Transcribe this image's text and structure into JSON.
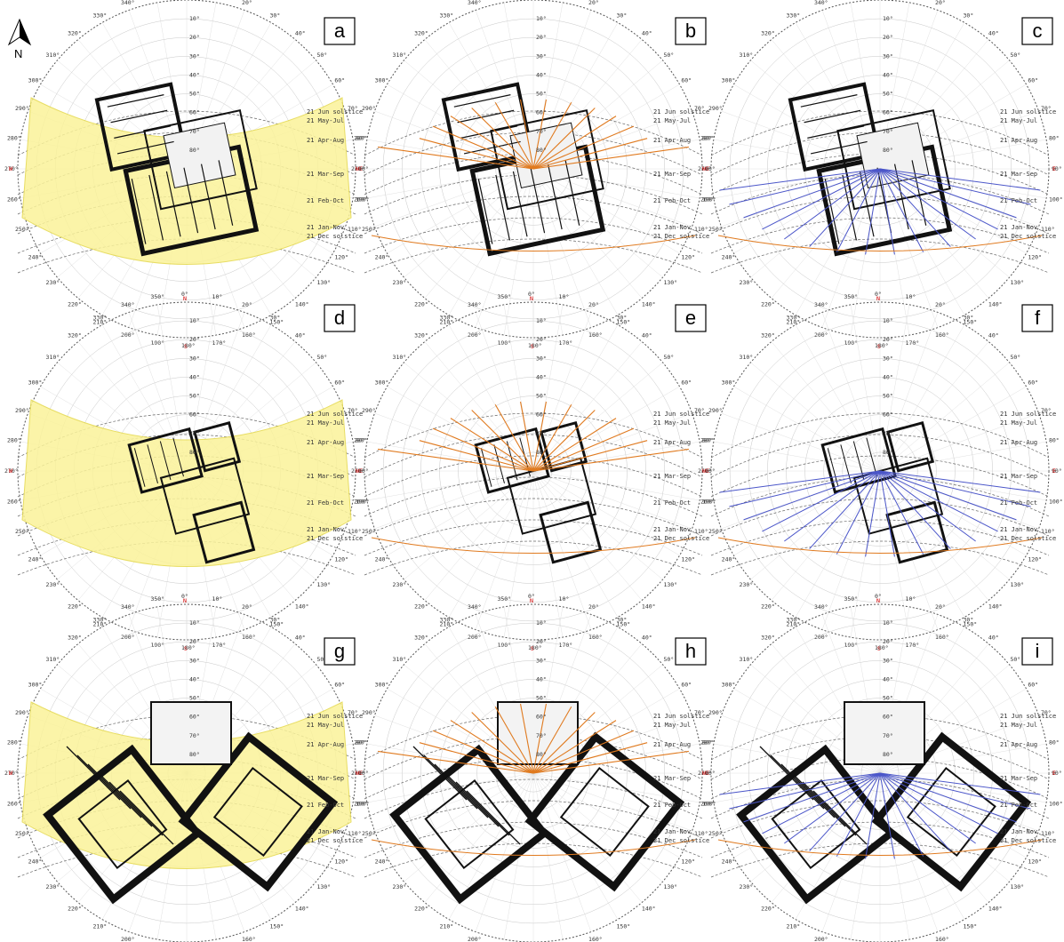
{
  "north_label": "N",
  "panels": [
    {
      "letter": "a",
      "mode": "shade",
      "plan": "p1"
    },
    {
      "letter": "b",
      "mode": "orange",
      "plan": "p1"
    },
    {
      "letter": "c",
      "mode": "blue",
      "plan": "p1"
    },
    {
      "letter": "d",
      "mode": "shade",
      "plan": "p2"
    },
    {
      "letter": "e",
      "mode": "orange",
      "plan": "p2"
    },
    {
      "letter": "f",
      "mode": "blue",
      "plan": "p2"
    },
    {
      "letter": "g",
      "mode": "shade",
      "plan": "p3"
    },
    {
      "letter": "h",
      "mode": "orange",
      "plan": "p3"
    },
    {
      "letter": "i",
      "mode": "blue",
      "plan": "p3"
    }
  ],
  "cardinal": {
    "north": "N",
    "south": "S",
    "west": "W",
    "east": "E"
  },
  "azimuth_labels": [
    "0°",
    "10°",
    "20°",
    "30°",
    "40°",
    "50°",
    "60°",
    "70°",
    "80°",
    "90°",
    "100°",
    "110°",
    "120°",
    "130°",
    "140°",
    "150°",
    "160°",
    "170°",
    "180°",
    "190°",
    "200°",
    "210°",
    "220°",
    "230°",
    "240°",
    "250°",
    "260°",
    "270°",
    "280°",
    "290°",
    "300°",
    "310°",
    "320°",
    "330°",
    "340°",
    "350°"
  ],
  "altitude_labels": [
    "10°",
    "20°",
    "30°",
    "40°",
    "50°",
    "60°",
    "70°",
    "80°"
  ],
  "date_labels": [
    "21 Jun solstice",
    "21 May-Jul",
    "21 Apr-Aug",
    "21 Mar-Sep",
    "21 Feb-Oct",
    "21 Jan-Nov",
    "21 Dec solstice"
  ],
  "colors": {
    "shade": "#fbf39a",
    "shade_edge": "#e4d84a",
    "orange": "#e07a1f",
    "blue": "#4b56c9",
    "plan": "#111111"
  }
}
